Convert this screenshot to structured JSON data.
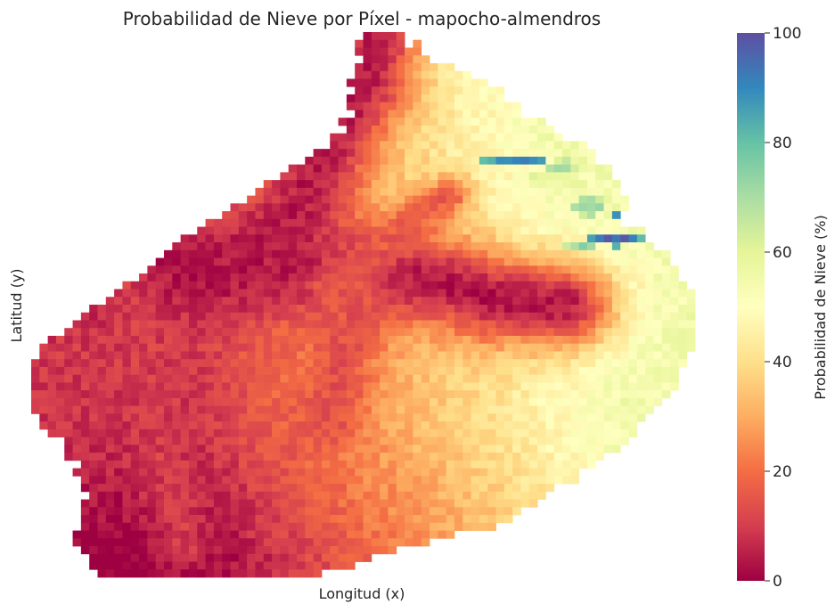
{
  "chart_data": {
    "type": "heatmap",
    "title": "Probabilidad de Nieve por Píxel - mapocho-almendros",
    "xlabel": "Longitud (x)",
    "ylabel": "Latitud (y)",
    "colormap": "Spectral",
    "value_range": [
      0,
      100
    ],
    "colorbar": {
      "label": "Probabilidad de Nieve (%)",
      "ticks": [
        0,
        20,
        40,
        60,
        80,
        100
      ],
      "stops": [
        "#9e0142",
        "#d53e4f",
        "#f46d43",
        "#fdae61",
        "#fee08b",
        "#ffffbf",
        "#e6f598",
        "#abdda4",
        "#66c2a5",
        "#3288bd",
        "#5e4fa2"
      ]
    },
    "grid": false,
    "region_boundary_yx": [
      [
        0.0,
        0.5,
        0.56
      ],
      [
        0.05,
        0.49,
        0.6
      ],
      [
        0.1,
        0.48,
        0.7
      ],
      [
        0.15,
        0.48,
        0.75
      ],
      [
        0.2,
        0.45,
        0.82
      ],
      [
        0.25,
        0.4,
        0.87
      ],
      [
        0.3,
        0.33,
        0.9
      ],
      [
        0.35,
        0.26,
        0.9
      ],
      [
        0.4,
        0.2,
        0.95
      ],
      [
        0.45,
        0.15,
        0.98
      ],
      [
        0.5,
        0.1,
        1.0
      ],
      [
        0.55,
        0.04,
        1.0
      ],
      [
        0.6,
        0.0,
        0.99
      ],
      [
        0.65,
        0.0,
        0.96
      ],
      [
        0.7,
        0.0,
        0.94
      ],
      [
        0.75,
        0.04,
        0.9
      ],
      [
        0.8,
        0.07,
        0.84
      ],
      [
        0.85,
        0.08,
        0.78
      ],
      [
        0.9,
        0.07,
        0.72
      ],
      [
        0.95,
        0.07,
        0.55
      ],
      [
        1.0,
        0.1,
        0.43
      ]
    ],
    "valleys": [
      {
        "points": [
          [
            0.46,
            0.02
          ],
          [
            0.45,
            0.18
          ],
          [
            0.43,
            0.33
          ],
          [
            0.44,
            0.5
          ],
          [
            0.46,
            0.62
          ],
          [
            0.49,
            0.7
          ],
          [
            0.5,
            0.8
          ]
        ],
        "width": 0.06,
        "value": 3
      },
      {
        "points": [
          [
            0.43,
            0.32
          ],
          [
            0.33,
            0.4
          ],
          [
            0.2,
            0.45
          ],
          [
            0.1,
            0.5
          ],
          [
            0.01,
            0.52
          ]
        ],
        "width": 0.05,
        "value": 4
      },
      {
        "points": [
          [
            0.46,
            0.45
          ],
          [
            0.38,
            0.54
          ],
          [
            0.3,
            0.63
          ]
        ],
        "width": 0.025,
        "value": 16
      },
      {
        "points": [
          [
            0.46,
            0.5
          ],
          [
            0.6,
            0.47
          ],
          [
            0.72,
            0.45
          ]
        ],
        "width": 0.035,
        "value": 14
      },
      {
        "points": [
          [
            0.48,
            0.15
          ],
          [
            0.62,
            0.18
          ],
          [
            0.78,
            0.2
          ],
          [
            0.95,
            0.23
          ]
        ],
        "width": 0.03,
        "value": 10
      }
    ],
    "gradient_field": {
      "base": 4,
      "east_weight": 55,
      "north_weight": 14,
      "south_east_weight": -14,
      "ridge_cap": 55
    },
    "snow_patches": [
      {
        "y": 0.235,
        "x": 0.73,
        "ry": 0.012,
        "rx": 0.05,
        "value": 92
      },
      {
        "y": 0.245,
        "x": 0.8,
        "ry": 0.01,
        "rx": 0.03,
        "value": 72
      },
      {
        "y": 0.32,
        "x": 0.84,
        "ry": 0.018,
        "rx": 0.025,
        "value": 75
      },
      {
        "y": 0.335,
        "x": 0.89,
        "ry": 0.01,
        "rx": 0.012,
        "value": 95
      },
      {
        "y": 0.38,
        "x": 0.88,
        "ry": 0.013,
        "rx": 0.04,
        "value": 96
      },
      {
        "y": 0.395,
        "x": 0.83,
        "ry": 0.01,
        "rx": 0.025,
        "value": 75
      },
      {
        "y": 0.27,
        "x": 0.77,
        "ry": 0.015,
        "rx": 0.03,
        "value": 62
      }
    ],
    "visual_value_range": [
      0,
      100
    ]
  },
  "style": {
    "background": "#ffffff",
    "text_color": "#262626"
  }
}
